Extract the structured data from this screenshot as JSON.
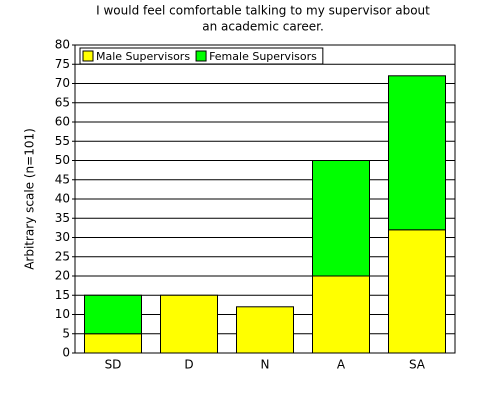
{
  "chart_data": {
    "type": "stacked_bar",
    "title": [
      "I would feel comfortable talking to my supervisor about",
      "an academic career."
    ],
    "y_label": "Arbitrary scale (n=101)",
    "categories": [
      "SD",
      "D",
      "N",
      "A",
      "SA"
    ],
    "series": [
      {
        "name": "Male Supervisors",
        "color": "#ffff00",
        "values": [
          5,
          15,
          12,
          20,
          32
        ]
      },
      {
        "name": "Female Supervisors",
        "color": "#00ff00",
        "values": [
          10,
          0,
          0,
          30,
          40
        ]
      }
    ],
    "ylim": [
      0,
      80
    ],
    "yticks": [
      0,
      5,
      10,
      15,
      20,
      25,
      30,
      35,
      40,
      45,
      50,
      55,
      60,
      65,
      70,
      75,
      80
    ],
    "grid": true,
    "legend": "top-left"
  }
}
